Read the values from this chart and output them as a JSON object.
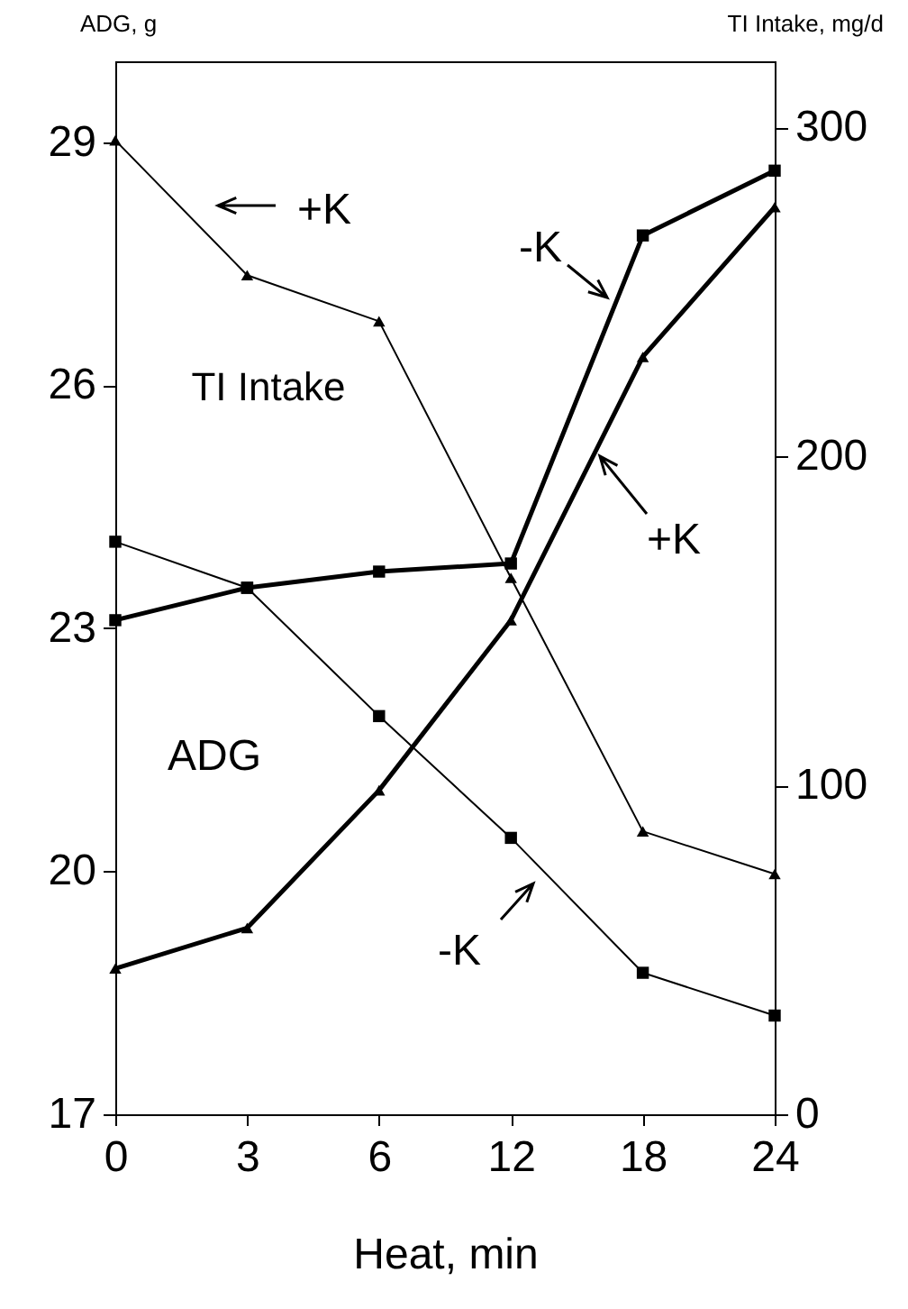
{
  "chart_data": {
    "type": "line",
    "xlabel": "Heat, min",
    "ylabel": "ADG, g",
    "y2label": "TI Intake, mg/d",
    "categories": [
      "0",
      "3",
      "6",
      "12",
      "18",
      "24"
    ],
    "ylim": [
      17,
      30
    ],
    "yticks": [
      17,
      20,
      23,
      26,
      29
    ],
    "y2lim": [
      0,
      320
    ],
    "y2ticks": [
      0,
      100,
      200,
      300
    ],
    "grid": false,
    "line_style": "solid",
    "series": [
      {
        "color": "#000000",
        "marker": "triangle",
        "axis": "y2",
        "values": [
          296,
          255,
          241,
          163,
          86,
          73
        ]
      },
      {
        "color": "#000000",
        "marker": "square",
        "axis": "y2",
        "values": [
          174,
          160,
          121,
          84,
          43,
          30
        ]
      },
      {
        "color": "#000000",
        "marker": "square",
        "axis": "y",
        "values": [
          23.1,
          23.5,
          23.7,
          23.8,
          27.85,
          28.65
        ]
      },
      {
        "color": "#000000",
        "marker": "triangle",
        "axis": "y",
        "values": [
          18.8,
          19.3,
          21.0,
          23.1,
          26.35,
          28.2
        ]
      }
    ],
    "annotations": [
      "+K",
      "TI Intake",
      "-K",
      "+K",
      "ADG",
      "-K"
    ]
  }
}
